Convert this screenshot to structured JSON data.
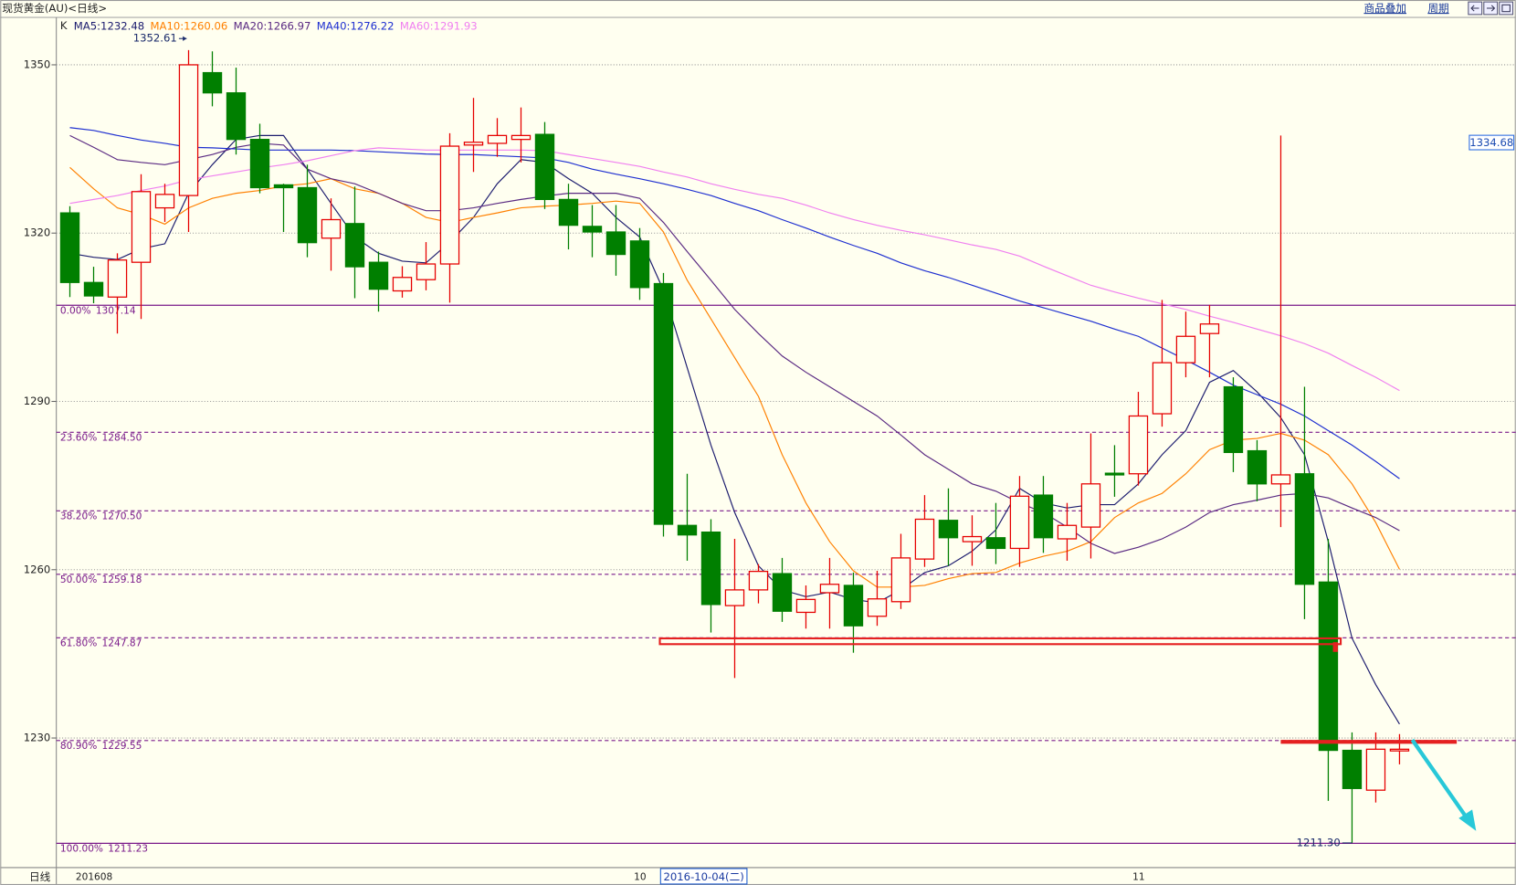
{
  "header": {
    "title": "现货黄金(AU)<日线>",
    "buttons": [
      "商品叠加",
      "周期"
    ]
  },
  "chart_data": {
    "type": "candlestick",
    "period_label": "日线",
    "legend_label": "K",
    "cursor_date": "2016-10-04(二)",
    "categories": [
      "201608",
      null,
      null,
      null,
      null,
      null,
      null,
      null,
      null,
      null,
      null,
      null,
      null,
      null,
      null,
      null,
      null,
      null,
      null,
      null,
      null,
      null,
      null,
      null,
      "10",
      null,
      null,
      null,
      null,
      null,
      null,
      null,
      null,
      null,
      null,
      null,
      null,
      null,
      null,
      null,
      null,
      null,
      null,
      null,
      null,
      "11",
      null,
      null,
      null,
      null,
      null,
      null,
      null,
      null,
      null,
      null,
      null
    ],
    "open": [
      1323.6,
      1311.2,
      1308.6,
      1314.8,
      1324.5,
      1326.7,
      1348.6,
      1345,
      1336.7,
      1328.6,
      1328.1,
      1319.1,
      1321.7,
      1314.8,
      1309.7,
      1311.7,
      1314.5,
      1335.7,
      1336,
      1336.7,
      1337.6,
      1326,
      1321.2,
      1320.2,
      1318.6,
      1311,
      1267.9,
      1266.7,
      1253.6,
      1256.4,
      1259.3,
      1252.4,
      1255.9,
      1257.2,
      1251.7,
      1254.3,
      1261.9,
      1268.8,
      1265,
      1265.7,
      1263.8,
      1273.3,
      1265.5,
      1267.6,
      1277.2,
      1277.1,
      1287.8,
      1296.9,
      1302.1,
      1292.6,
      1281.2,
      1275.3,
      1277.1,
      1257.8,
      1227.8,
      1220.7,
      1227.7
    ],
    "high": [
      1324.8,
      1314,
      1316.4,
      1330.5,
      1328.8,
      1352.61,
      1352.4,
      1349.5,
      1339.5,
      1328.8,
      1332.2,
      1326.2,
      1328.3,
      1316.7,
      1314.1,
      1318.4,
      1337.8,
      1344.1,
      1340.5,
      1342.4,
      1339.8,
      1328.8,
      1325,
      1325,
      1320.9,
      1312.9,
      1277.1,
      1269,
      1265.5,
      1261,
      1262.1,
      1257.2,
      1262.1,
      1259.5,
      1259.8,
      1266.4,
      1273.3,
      1274.5,
      1269.7,
      1271.9,
      1276.7,
      1276.7,
      1271.9,
      1284.3,
      1282.2,
      1291.7,
      1308.1,
      1306,
      1307.2,
      1294.3,
      1283.1,
      1337.4,
      1292.6,
      1265.5,
      1231,
      1231,
      1230.7
    ],
    "low": [
      1308.6,
      1307.5,
      1302.1,
      1304.7,
      1322,
      1320.2,
      1342.6,
      1334,
      1327.1,
      1320.2,
      1315.7,
      1313.3,
      1308.4,
      1306,
      1308.5,
      1309.8,
      1307.6,
      1330.9,
      1333.6,
      1332.6,
      1324.3,
      1317.1,
      1315.7,
      1312.4,
      1308.1,
      1265.9,
      1261.6,
      1248.8,
      1240.7,
      1254,
      1250.7,
      1249.5,
      1249.5,
      1245.2,
      1250,
      1253,
      1260.5,
      1260.7,
      1260.7,
      1261,
      1260.5,
      1263,
      1261.6,
      1262,
      1273,
      1275,
      1285.5,
      1294.3,
      1294.3,
      1277.4,
      1272.2,
      1267.6,
      1251.2,
      1218.8,
      1211.3,
      1218.5,
      1225.3
    ],
    "close": [
      1311.2,
      1308.8,
      1315.2,
      1327.4,
      1326.9,
      1350,
      1345,
      1336.7,
      1328.1,
      1328.1,
      1318.3,
      1322.4,
      1314,
      1310,
      1312.1,
      1314.5,
      1335.5,
      1336.2,
      1337.4,
      1337.4,
      1326,
      1321.4,
      1320.2,
      1316.2,
      1310.3,
      1268.1,
      1266.2,
      1253.8,
      1256.4,
      1259.7,
      1252.6,
      1254.7,
      1257.4,
      1250,
      1254.8,
      1262.1,
      1269,
      1265.7,
      1265.9,
      1263.8,
      1273.1,
      1265.7,
      1267.9,
      1275.3,
      1276.9,
      1287.4,
      1296.9,
      1301.6,
      1303.8,
      1280.9,
      1275.3,
      1276.9,
      1257.4,
      1227.8,
      1221,
      1228,
      1228
    ],
    "up_color": "#e60000",
    "down_color": "#007f00",
    "series": [
      {
        "name": "MA5",
        "color": "#1c1c6e",
        "values": [
          1316.4,
          1315.7,
          1315.3,
          1317.2,
          1318.1,
          1327.1,
          1332.2,
          1336.7,
          1337.4,
          1337.4,
          1331.4,
          1325.3,
          1319.3,
          1316.4,
          1315.0,
          1314.7,
          1318.4,
          1322.8,
          1328.8,
          1333.1,
          1332.6,
          1329.7,
          1327.1,
          1322.8,
          1319.3,
          1309.8,
          1296.0,
          1282.2,
          1270.2,
          1260.7,
          1256.4,
          1255.2,
          1256.0,
          1254.7,
          1254.1,
          1256.4,
          1259.5,
          1260.7,
          1263.3,
          1267.1,
          1274.5,
          1271.9,
          1271.0,
          1271.6,
          1271.6,
          1275.3,
          1280.5,
          1284.8,
          1293.4,
          1295.5,
          1291.7,
          1287.1,
          1280.5,
          1265.0,
          1247.8,
          1239.5,
          1232.48
        ]
      },
      {
        "name": "MA10",
        "color": "#ff8000",
        "values": [
          1331.7,
          1327.9,
          1324.5,
          1323.3,
          1321.6,
          1324.5,
          1326.2,
          1327.1,
          1327.6,
          1328.4,
          1328.8,
          1329.7,
          1327.9,
          1327.1,
          1325.3,
          1322.8,
          1321.9,
          1322.8,
          1323.6,
          1324.5,
          1324.8,
          1325.0,
          1325.3,
          1325.7,
          1325.3,
          1320.2,
          1311.6,
          1304.7,
          1297.8,
          1290.9,
          1280.5,
          1271.9,
          1265.0,
          1259.8,
          1256.9,
          1256.9,
          1257.2,
          1258.4,
          1259.3,
          1259.5,
          1261.2,
          1262.4,
          1263.3,
          1265.0,
          1269.3,
          1271.9,
          1273.6,
          1277.1,
          1281.4,
          1283.1,
          1283.4,
          1284.3,
          1283.1,
          1280.5,
          1275.3,
          1268.4,
          1260.06
        ]
      },
      {
        "name": "MA20",
        "color": "#5a2a82",
        "values": [
          1337.4,
          1335.3,
          1333.1,
          1332.6,
          1332.2,
          1333.1,
          1334.0,
          1335.3,
          1336.0,
          1335.7,
          1331.4,
          1329.7,
          1328.8,
          1327.1,
          1325.3,
          1324.0,
          1324.0,
          1324.5,
          1325.3,
          1326.0,
          1326.6,
          1327.1,
          1327.1,
          1327.1,
          1326.2,
          1321.9,
          1316.7,
          1311.6,
          1306.4,
          1302.1,
          1298.1,
          1295.2,
          1292.6,
          1290.0,
          1287.4,
          1284.0,
          1280.5,
          1277.9,
          1275.3,
          1274.0,
          1271.9,
          1270.2,
          1267.6,
          1264.7,
          1262.9,
          1264.0,
          1265.5,
          1267.6,
          1270.2,
          1271.6,
          1272.4,
          1273.3,
          1273.6,
          1272.8,
          1271.0,
          1269.3,
          1266.97
        ]
      },
      {
        "name": "MA40",
        "color": "#1e2fd0",
        "values": [
          1338.8,
          1338.3,
          1337.4,
          1336.6,
          1336.0,
          1335.3,
          1335.2,
          1335.0,
          1334.8,
          1334.8,
          1334.8,
          1334.8,
          1334.7,
          1334.5,
          1334.3,
          1334.1,
          1334.0,
          1334.0,
          1333.8,
          1333.6,
          1333.4,
          1332.6,
          1331.4,
          1330.5,
          1329.7,
          1328.8,
          1327.8,
          1326.7,
          1325.3,
          1324.0,
          1322.4,
          1320.9,
          1319.3,
          1317.8,
          1316.4,
          1314.7,
          1313.3,
          1312.1,
          1310.7,
          1309.3,
          1307.9,
          1306.7,
          1305.5,
          1304.3,
          1302.9,
          1301.6,
          1299.5,
          1297.4,
          1295.2,
          1292.9,
          1291.2,
          1289.5,
          1287.4,
          1284.8,
          1282.2,
          1279.3,
          1276.22
        ]
      },
      {
        "name": "MA60",
        "color": "#f080f0",
        "values": [
          1325.3,
          1326.0,
          1326.7,
          1327.6,
          1328.4,
          1329.5,
          1330.2,
          1330.9,
          1331.6,
          1332.2,
          1332.9,
          1333.8,
          1334.7,
          1335.2,
          1335.0,
          1334.8,
          1334.8,
          1334.8,
          1334.8,
          1334.8,
          1334.7,
          1334.0,
          1333.3,
          1332.6,
          1331.9,
          1330.9,
          1330.0,
          1328.8,
          1327.8,
          1326.9,
          1326.2,
          1325.0,
          1323.6,
          1322.4,
          1321.4,
          1320.5,
          1319.7,
          1318.8,
          1317.9,
          1317.1,
          1315.9,
          1314.1,
          1312.4,
          1310.7,
          1309.5,
          1308.4,
          1307.4,
          1306.4,
          1305.2,
          1304.1,
          1302.9,
          1301.7,
          1300.3,
          1298.6,
          1296.4,
          1294.3,
          1291.93
        ]
      }
    ],
    "ylim": [
      1206.9,
      1358.45
    ],
    "yticks": [
      1230,
      1260,
      1290,
      1320,
      1350
    ],
    "grid": true,
    "fib_color": "#7a1a8a",
    "fib_levels": [
      {
        "ratio": "0.00%",
        "price": 1307.14,
        "style": "solid"
      },
      {
        "ratio": "23.60%",
        "price": {
          "value": 1284.5,
          "label": "1284.50"
        },
        "style": "dashed"
      },
      {
        "ratio": "38.20%",
        "price": {
          "value": 1270.5,
          "label": "1270.50"
        },
        "style": "dashed"
      },
      {
        "ratio": "50.00%",
        "price": 1259.18,
        "style": "dashed"
      },
      {
        "ratio": "61.80%",
        "price": 1247.87,
        "style": "dashed"
      },
      {
        "ratio": "80.90%",
        "price": 1229.55,
        "style": "dashed"
      },
      {
        "ratio": "100.00%",
        "price": 1211.23,
        "style": "solid"
      }
    ],
    "high_label": 1352.61,
    "low_label": {
      "value": 1211.3,
      "label": "1211.30"
    },
    "price_tag": 1334.68
  }
}
